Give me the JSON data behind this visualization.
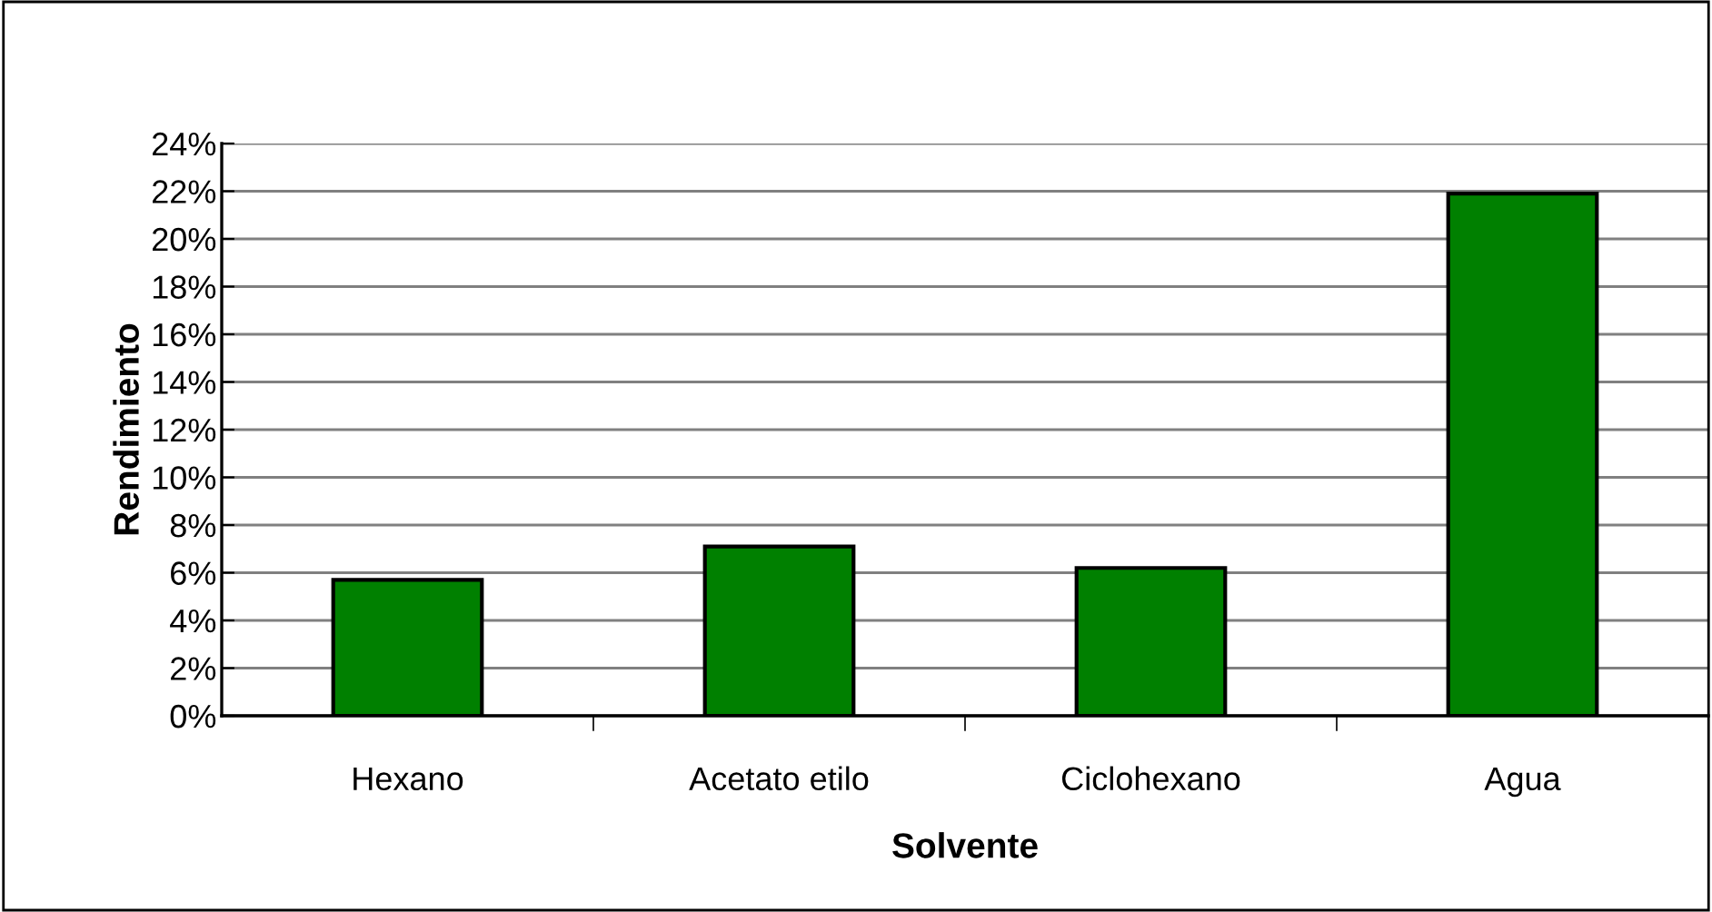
{
  "chart_data": {
    "type": "bar",
    "xlabel": "Solvente",
    "ylabel": "Rendimiento",
    "categories": [
      "Hexano",
      "Acetato etilo",
      "Ciclohexano",
      "Agua"
    ],
    "values": [
      5.7,
      7.1,
      6.2,
      21.9
    ],
    "color": "#008000",
    "ylim": [
      0,
      24
    ],
    "yticks": [
      {
        "value": 0,
        "label": "0%"
      },
      {
        "value": 2,
        "label": "2%"
      },
      {
        "value": 4,
        "label": "4%"
      },
      {
        "value": 6,
        "label": "6%"
      },
      {
        "value": 8,
        "label": "8%"
      },
      {
        "value": 10,
        "label": "10%"
      },
      {
        "value": 12,
        "label": "12%"
      },
      {
        "value": 14,
        "label": "14%"
      },
      {
        "value": 16,
        "label": "16%"
      },
      {
        "value": 18,
        "label": "18%"
      },
      {
        "value": 20,
        "label": "20%"
      },
      {
        "value": 22,
        "label": "22%"
      },
      {
        "value": 24,
        "label": "24%"
      }
    ],
    "grid": "y",
    "legend": false
  }
}
